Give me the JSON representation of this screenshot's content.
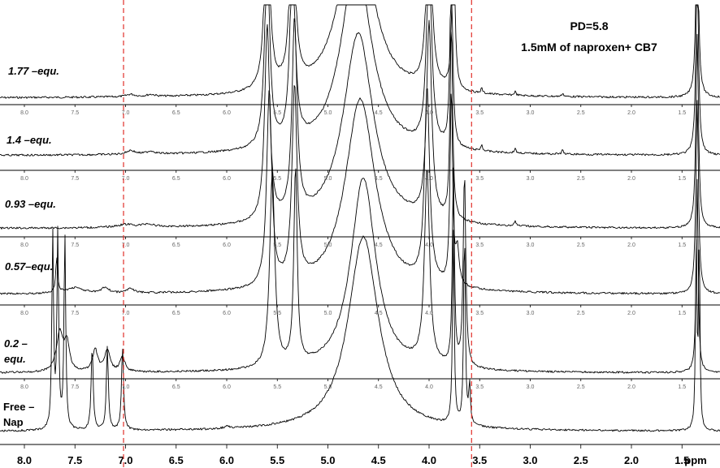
{
  "chart_data": {
    "type": "line",
    "x_unit": "ppm",
    "xlim": [
      8.2,
      1.0
    ],
    "x_reversed": true,
    "main_ticks": [
      "8.0",
      "7.5",
      "7.0",
      "6.5",
      "6.0",
      "5.5",
      "5.0",
      "4.5",
      "4.0",
      "3.5",
      "3.0",
      "2.5",
      "2.0",
      "1.5"
    ],
    "mini_ticks": [
      "8.0",
      "7.5",
      "7.0",
      "6.5",
      "6.0",
      "5.5",
      "5.0",
      "4.5",
      "4.0",
      "3.5",
      "3.0",
      "2.5",
      "2.0",
      "1.5"
    ],
    "annotations": {
      "line1": "PD=5.8",
      "line2": "1.5mM of naproxen+ CB7"
    },
    "reference_lines_ppm": [
      7.02,
      3.58
    ],
    "reference_line_color": "#e0302a",
    "spectra": [
      {
        "label": "1.77 –equ.",
        "peaks": [
          {
            "ppm": 6.95,
            "h": 0.05,
            "w": 0.05
          },
          {
            "ppm": 6.75,
            "h": 0.04,
            "w": 0.05
          },
          {
            "ppm": 5.6,
            "h": 4.0,
            "w": 0.03
          },
          {
            "ppm": 5.35,
            "h": 4.0,
            "w": 0.03
          },
          {
            "ppm": 4.72,
            "h": 4.0,
            "w": 0.18
          },
          {
            "ppm": 4.0,
            "h": 4.0,
            "w": 0.03
          },
          {
            "ppm": 3.76,
            "h": 4.0,
            "w": 0.015
          },
          {
            "ppm": 3.48,
            "h": 0.1,
            "w": 0.01
          },
          {
            "ppm": 3.15,
            "h": 0.08,
            "w": 0.01
          },
          {
            "ppm": 2.68,
            "h": 0.07,
            "w": 0.01
          },
          {
            "ppm": 1.35,
            "h": 4.0,
            "w": 0.015
          }
        ]
      },
      {
        "label": "1.4 –equ.",
        "peaks": [
          {
            "ppm": 6.95,
            "h": 0.08,
            "w": 0.05
          },
          {
            "ppm": 6.75,
            "h": 0.06,
            "w": 0.05
          },
          {
            "ppm": 5.6,
            "h": 4.0,
            "w": 0.03
          },
          {
            "ppm": 5.35,
            "h": 4.0,
            "w": 0.03
          },
          {
            "ppm": 4.72,
            "h": 4.0,
            "w": 0.18
          },
          {
            "ppm": 4.0,
            "h": 4.0,
            "w": 0.03
          },
          {
            "ppm": 3.78,
            "h": 4.0,
            "w": 0.015
          },
          {
            "ppm": 3.48,
            "h": 0.12,
            "w": 0.01
          },
          {
            "ppm": 3.15,
            "h": 0.09,
            "w": 0.01
          },
          {
            "ppm": 2.68,
            "h": 0.08,
            "w": 0.01
          },
          {
            "ppm": 1.35,
            "h": 4.0,
            "w": 0.015
          }
        ]
      },
      {
        "label": "0.93 –equ.",
        "peaks": [
          {
            "ppm": 7.0,
            "h": 0.06,
            "w": 0.1
          },
          {
            "ppm": 6.78,
            "h": 0.06,
            "w": 0.07
          },
          {
            "ppm": 5.6,
            "h": 4.0,
            "w": 0.03
          },
          {
            "ppm": 5.33,
            "h": 4.0,
            "w": 0.03
          },
          {
            "ppm": 4.7,
            "h": 4.0,
            "w": 0.18
          },
          {
            "ppm": 4.0,
            "h": 4.0,
            "w": 0.03
          },
          {
            "ppm": 3.78,
            "h": 4.0,
            "w": 0.015
          },
          {
            "ppm": 3.15,
            "h": 0.1,
            "w": 0.01
          },
          {
            "ppm": 1.35,
            "h": 4.0,
            "w": 0.015
          }
        ]
      },
      {
        "label": "0.57–equ.",
        "peaks": [
          {
            "ppm": 7.68,
            "h": 0.7,
            "w": 0.012
          },
          {
            "ppm": 7.5,
            "h": 0.12,
            "w": 0.1
          },
          {
            "ppm": 7.2,
            "h": 0.12,
            "w": 0.04
          },
          {
            "ppm": 6.95,
            "h": 0.1,
            "w": 0.04
          },
          {
            "ppm": 5.58,
            "h": 4.0,
            "w": 0.03
          },
          {
            "ppm": 5.33,
            "h": 4.0,
            "w": 0.03
          },
          {
            "ppm": 4.68,
            "h": 4.0,
            "w": 0.18
          },
          {
            "ppm": 4.02,
            "h": 4.0,
            "w": 0.03
          },
          {
            "ppm": 3.78,
            "h": 4.0,
            "w": 0.015
          },
          {
            "ppm": 3.72,
            "h": 0.7,
            "w": 0.02
          },
          {
            "ppm": 1.35,
            "h": 4.0,
            "w": 0.015
          }
        ]
      },
      {
        "label": "0.2 –",
        "label2": "equ.",
        "peaks": [
          {
            "ppm": 7.65,
            "h": 0.8,
            "w": 0.04
          },
          {
            "ppm": 7.58,
            "h": 0.55,
            "w": 0.03
          },
          {
            "ppm": 7.3,
            "h": 0.45,
            "w": 0.03
          },
          {
            "ppm": 7.18,
            "h": 0.45,
            "w": 0.03
          },
          {
            "ppm": 7.03,
            "h": 0.3,
            "w": 0.03
          },
          {
            "ppm": 5.55,
            "h": 4.0,
            "w": 0.03
          },
          {
            "ppm": 5.32,
            "h": 4.0,
            "w": 0.02
          },
          {
            "ppm": 4.65,
            "h": 4.0,
            "w": 0.15
          },
          {
            "ppm": 4.02,
            "h": 4.0,
            "w": 0.03
          },
          {
            "ppm": 3.76,
            "h": 4.0,
            "w": 0.012
          },
          {
            "ppm": 3.65,
            "h": 4.0,
            "w": 0.015
          },
          {
            "ppm": 1.35,
            "h": 4.0,
            "w": 0.012
          }
        ]
      },
      {
        "label": "Free –",
        "label2": "Nap",
        "peaks": [
          {
            "ppm": 7.72,
            "h": 4.0,
            "w": 0.01
          },
          {
            "ppm": 7.67,
            "h": 4.0,
            "w": 0.01
          },
          {
            "ppm": 7.6,
            "h": 4.0,
            "w": 0.01
          },
          {
            "ppm": 7.33,
            "h": 1.7,
            "w": 0.012
          },
          {
            "ppm": 7.18,
            "h": 1.7,
            "w": 0.012
          },
          {
            "ppm": 7.03,
            "h": 1.7,
            "w": 0.012
          },
          {
            "ppm": 6.0,
            "h": 0.04,
            "w": 0.03
          },
          {
            "ppm": 4.65,
            "h": 4.0,
            "w": 0.18
          },
          {
            "ppm": 3.76,
            "h": 4.0,
            "w": 0.01
          },
          {
            "ppm": 3.65,
            "h": 4.0,
            "w": 0.01
          },
          {
            "ppm": 3.6,
            "h": 0.8,
            "w": 0.01
          },
          {
            "ppm": 1.36,
            "h": 4.0,
            "w": 0.008
          },
          {
            "ppm": 1.33,
            "h": 4.0,
            "w": 0.008
          }
        ]
      }
    ]
  },
  "axis_unit_label": "ppm"
}
